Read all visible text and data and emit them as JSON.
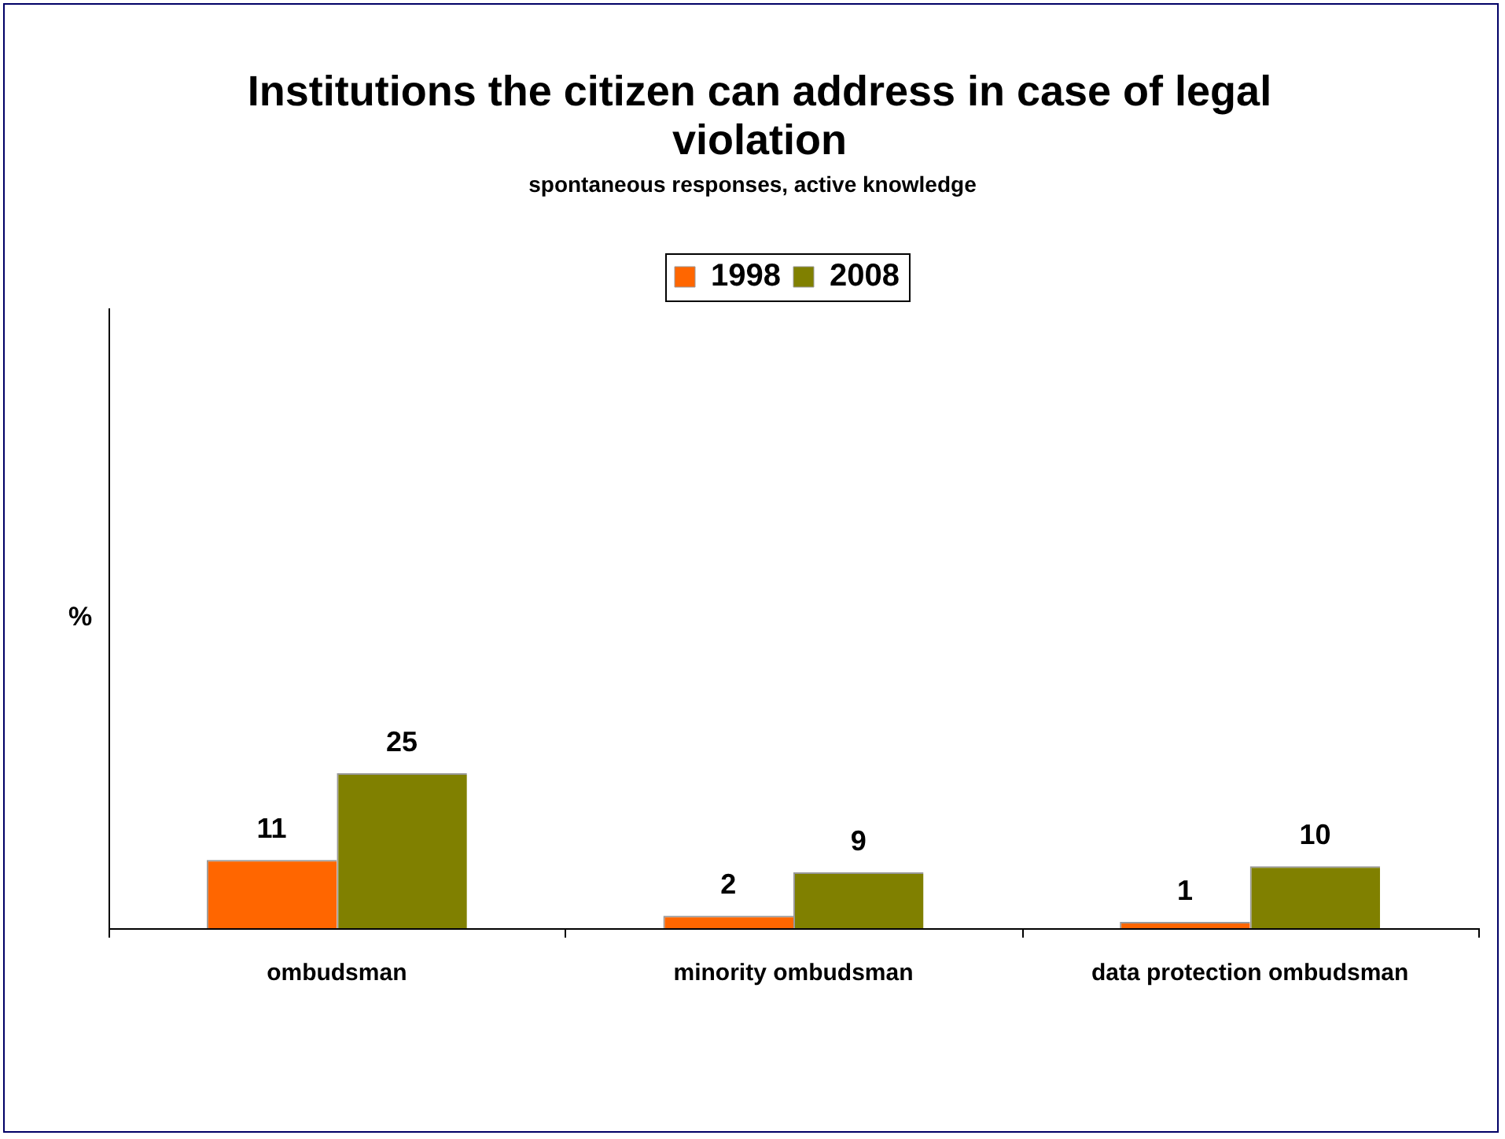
{
  "chart_data": {
    "type": "bar",
    "title": "Institutions the citizen can address in case of legal violation",
    "subtitle": "spontaneous responses, active knowledge",
    "ylabel": "%",
    "categories": [
      "ombudsman",
      "minority ombudsman",
      "data protection ombudsman"
    ],
    "series": [
      {
        "name": "1998",
        "color": "#ff6600",
        "values": [
          11,
          2,
          1
        ]
      },
      {
        "name": "2008",
        "color": "#808000",
        "values": [
          25,
          9,
          10
        ]
      }
    ],
    "ylim": [
      0,
      100
    ],
    "data_labels": true,
    "legend": "top",
    "grid": false
  }
}
